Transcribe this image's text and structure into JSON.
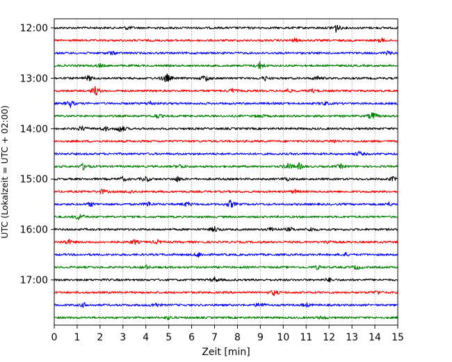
{
  "chart_data": {
    "type": "line",
    "title": "",
    "xlabel": "Zeit  [min]",
    "ylabel": "UTC (Lokalzeit = UTC + 02:00)",
    "xlim": [
      0,
      15
    ],
    "x_ticks": [
      "0",
      "1",
      "2",
      "3",
      "4",
      "5",
      "6",
      "7",
      "8",
      "9",
      "10",
      "11",
      "12",
      "13",
      "14",
      "15"
    ],
    "y_ticks": [
      "12:00",
      "13:00",
      "14:00",
      "15:00",
      "16:00",
      "17:00"
    ],
    "grid": "vertical dotted at each minute",
    "colors": [
      "#000000",
      "#ff0000",
      "#0000ff",
      "#008000"
    ],
    "traces": [
      {
        "start": "12:00",
        "color": "#000000",
        "events": [
          [
            3.2,
            1.2
          ],
          [
            12.3,
            3.0
          ]
        ]
      },
      {
        "start": "12:15",
        "color": "#ff0000",
        "events": [
          [
            10.5,
            1.2
          ],
          [
            14.3,
            1.4
          ]
        ]
      },
      {
        "start": "12:30",
        "color": "#0000ff",
        "events": [
          [
            2.5,
            1.3
          ],
          [
            14.6,
            1.2
          ]
        ]
      },
      {
        "start": "12:45",
        "color": "#008000",
        "events": [
          [
            9.0,
            3.0
          ],
          [
            2.0,
            1.2
          ]
        ]
      },
      {
        "start": "13:00",
        "color": "#000000",
        "events": [
          [
            1.5,
            2.0
          ],
          [
            4.9,
            3.5
          ],
          [
            6.6,
            2.5
          ],
          [
            9.2,
            1.5
          ],
          [
            11.5,
            1.4
          ]
        ]
      },
      {
        "start": "13:15",
        "color": "#ff0000",
        "events": [
          [
            1.8,
            3.5
          ],
          [
            7.8,
            1.6
          ],
          [
            10.2,
            1.3
          ],
          [
            11.3,
            1.2
          ]
        ]
      },
      {
        "start": "13:30",
        "color": "#0000ff",
        "events": [
          [
            0.7,
            2.6
          ],
          [
            4.2,
            1.4
          ],
          [
            11.8,
            1.2
          ]
        ]
      },
      {
        "start": "13:45",
        "color": "#008000",
        "events": [
          [
            4.5,
            1.5
          ],
          [
            13.9,
            3.0
          ],
          [
            9.0,
            1.2
          ]
        ]
      },
      {
        "start": "14:00",
        "color": "#000000",
        "events": [
          [
            1.2,
            1.8
          ],
          [
            2.2,
            1.6
          ],
          [
            2.9,
            3.0
          ]
        ]
      },
      {
        "start": "14:15",
        "color": "#ff0000",
        "events": [
          [
            12.2,
            1.2
          ]
        ]
      },
      {
        "start": "14:30",
        "color": "#0000ff",
        "events": [
          [
            13.3,
            1.6
          ]
        ]
      },
      {
        "start": "14:45",
        "color": "#008000",
        "events": [
          [
            1.3,
            2.6
          ],
          [
            5.5,
            1.5
          ],
          [
            10.2,
            2.6
          ],
          [
            10.7,
            2.2
          ],
          [
            12.5,
            1.4
          ]
        ]
      },
      {
        "start": "15:00",
        "color": "#000000",
        "events": [
          [
            3.0,
            1.5
          ],
          [
            4.0,
            2.0
          ],
          [
            5.4,
            1.8
          ],
          [
            10.1,
            1.4
          ],
          [
            14.8,
            1.4
          ]
        ]
      },
      {
        "start": "15:15",
        "color": "#ff0000",
        "events": [
          [
            2.1,
            1.6
          ],
          [
            3.3,
            1.4
          ],
          [
            10.5,
            1.2
          ]
        ]
      },
      {
        "start": "15:30",
        "color": "#0000ff",
        "events": [
          [
            1.6,
            1.4
          ],
          [
            4.1,
            1.8
          ],
          [
            5.8,
            1.6
          ],
          [
            7.7,
            2.8
          ],
          [
            14.6,
            1.3
          ]
        ]
      },
      {
        "start": "15:45",
        "color": "#008000",
        "events": [
          [
            1.1,
            2.7
          ]
        ]
      },
      {
        "start": "16:00",
        "color": "#000000",
        "events": [
          [
            7.0,
            2.0
          ],
          [
            9.5,
            1.8
          ],
          [
            10.3,
            1.3
          ],
          [
            11.2,
            1.4
          ]
        ]
      },
      {
        "start": "16:15",
        "color": "#ff0000",
        "events": [
          [
            0.6,
            2.0
          ],
          [
            3.5,
            1.6
          ],
          [
            4.5,
            1.3
          ],
          [
            12.0,
            1.4
          ]
        ]
      },
      {
        "start": "16:30",
        "color": "#0000ff",
        "events": [
          [
            6.3,
            1.7
          ],
          [
            12.7,
            1.2
          ]
        ]
      },
      {
        "start": "16:45",
        "color": "#008000",
        "events": [
          [
            4.0,
            1.4
          ],
          [
            11.5,
            1.3
          ],
          [
            13.2,
            1.5
          ]
        ]
      },
      {
        "start": "17:00",
        "color": "#000000",
        "events": [
          [
            7.0,
            1.6
          ],
          [
            12.0,
            1.2
          ]
        ]
      },
      {
        "start": "17:15",
        "color": "#ff0000",
        "events": [
          [
            9.6,
            2.0
          ],
          [
            14.1,
            1.3
          ]
        ]
      },
      {
        "start": "17:30",
        "color": "#0000ff",
        "events": [
          [
            1.3,
            1.4
          ],
          [
            4.4,
            1.8
          ],
          [
            9.0,
            2.2
          ],
          [
            11.0,
            1.4
          ]
        ]
      },
      {
        "start": "17:45",
        "color": "#008000",
        "events": [
          [
            5.0,
            1.2
          ],
          [
            11.7,
            1.2
          ]
        ]
      }
    ]
  }
}
